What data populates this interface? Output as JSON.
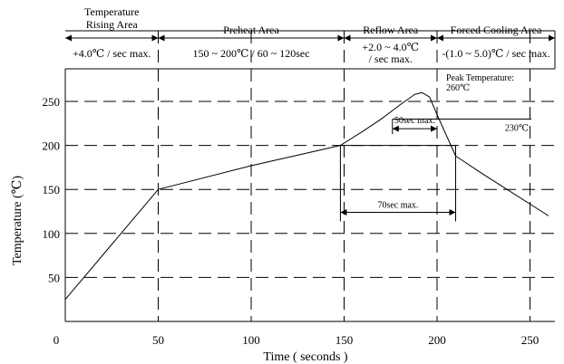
{
  "chart_data": {
    "type": "line",
    "title": "",
    "xlabel": "Time ( seconds )",
    "ylabel": "Temperature (℃)",
    "xlim": [
      0,
      260
    ],
    "ylim": [
      0,
      275
    ],
    "xticks": [
      0,
      50,
      100,
      150,
      200,
      250
    ],
    "yticks": [
      50,
      100,
      150,
      200,
      250
    ],
    "grid": true,
    "series": [
      {
        "x": [
          0,
          50,
          100,
          148,
          160,
          170,
          180,
          188,
          192,
          196,
          200,
          210,
          225,
          260
        ],
        "y": [
          25,
          150,
          177,
          200,
          216,
          230,
          246,
          258,
          260,
          255,
          235,
          188,
          167,
          120
        ]
      }
    ],
    "zones": [
      {
        "title": "Temperature\nRising Area",
        "rate": "+4.0℃ / sec max.",
        "x_start": 0,
        "x_end": 50
      },
      {
        "title": "Preheat Area",
        "rate": "150 ~ 200℃ / 60 ~ 120sec",
        "x_start": 50,
        "x_end": 150
      },
      {
        "title": "Reflow Area",
        "rate": "+2.0 ~ 4.0℃\n/ sec max.",
        "x_start": 150,
        "x_end": 200
      },
      {
        "title": "Forced Cooling Area",
        "rate": "-(1.0 ~ 5.0)℃ / sec max.",
        "x_start": 200,
        "x_end": 260
      }
    ],
    "annotations": {
      "peak": {
        "label": "Peak Temperature:\n260℃",
        "x": 186,
        "y": 260
      },
      "level_230": {
        "label": "230℃",
        "y": 230
      },
      "span_50": {
        "label": "50sec max.",
        "x_start": 176,
        "x_end": 200,
        "y": 219
      },
      "span_70": {
        "label": "70sec max.",
        "x_start": 148,
        "x_end": 210,
        "y": 124
      }
    }
  }
}
